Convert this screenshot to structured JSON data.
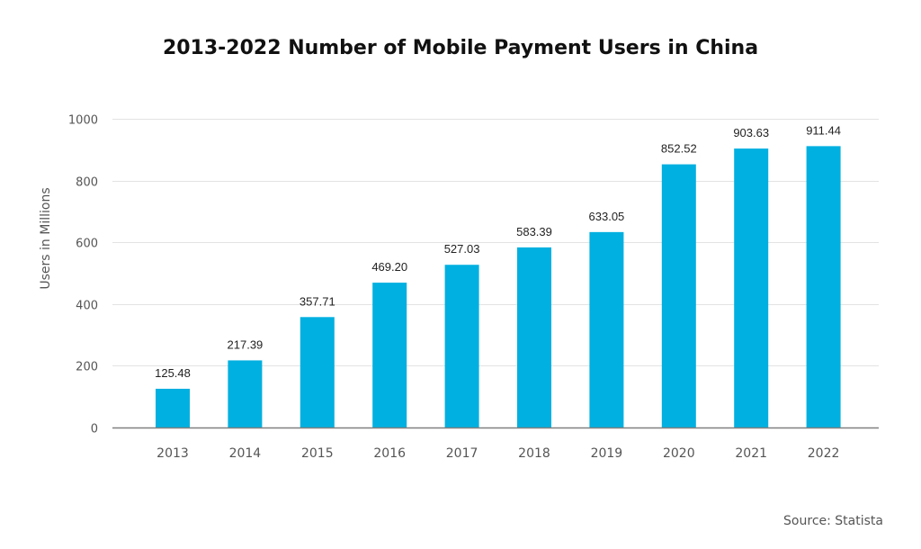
{
  "chart_data": {
    "type": "bar",
    "title": "2013-2022 Number of Mobile Payment Users in China",
    "xlabel": "",
    "ylabel": "Users in Millions",
    "categories": [
      "2013",
      "2014",
      "2015",
      "2016",
      "2017",
      "2018",
      "2019",
      "2020",
      "2021",
      "2022"
    ],
    "values": [
      125.48,
      217.39,
      357.71,
      469.2,
      527.03,
      583.39,
      633.05,
      852.52,
      903.63,
      911.44
    ],
    "data_labels": [
      "125.48",
      "217.39",
      "357.71",
      "469.20",
      "527.03",
      "583.39",
      "633.05",
      "852.52",
      "903.63",
      "911.44"
    ],
    "ylim": [
      0,
      1000
    ],
    "yticks": [
      0,
      200,
      400,
      600,
      800,
      1000
    ],
    "grid": true,
    "legend": "none",
    "bar_color": "#00B0E0",
    "source": "Source: Statista"
  }
}
